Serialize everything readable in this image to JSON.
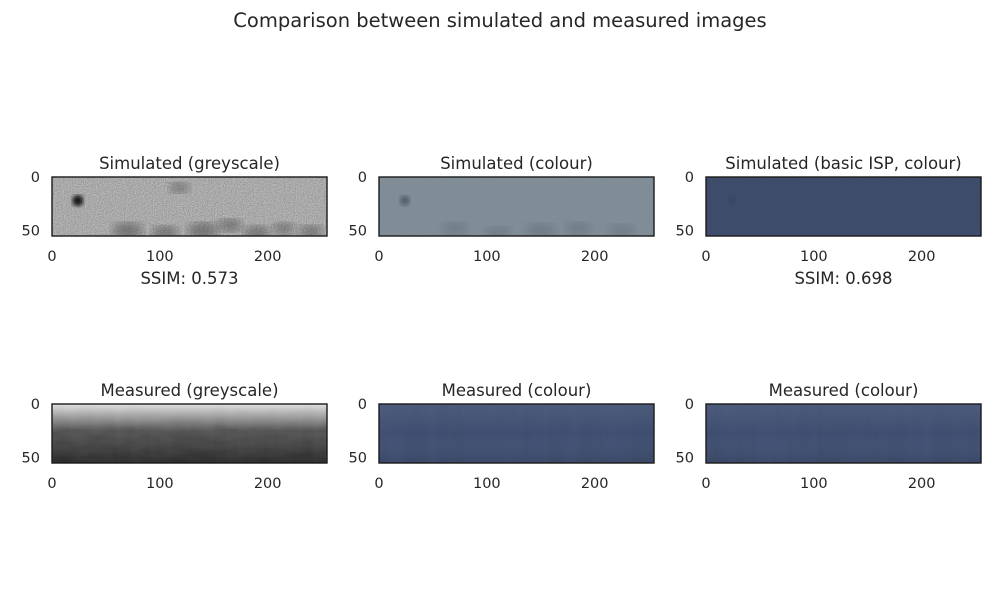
{
  "figure": {
    "title": "Comparison between simulated and measured images"
  },
  "chart_data": [
    {
      "type": "heatmap",
      "title": "Simulated (greyscale)",
      "image_kind": "greyscale",
      "base_color": "#8c8c8c",
      "xticks": [
        0,
        100,
        200
      ],
      "yticks": [
        0,
        50
      ],
      "xlim": [
        0,
        255
      ],
      "ylim": [
        55,
        0
      ],
      "annotation": "SSIM: 0.573"
    },
    {
      "type": "heatmap",
      "title": "Simulated (colour)",
      "image_kind": "colour",
      "base_color": "#7d8a94",
      "xticks": [
        0,
        100,
        200
      ],
      "yticks": [
        0,
        50
      ],
      "xlim": [
        0,
        255
      ],
      "ylim": [
        55,
        0
      ],
      "annotation": ""
    },
    {
      "type": "heatmap",
      "title": "Simulated (basic ISP, colour)",
      "image_kind": "colour",
      "base_color": "#3b4866",
      "xticks": [
        0,
        100,
        200
      ],
      "yticks": [
        0,
        50
      ],
      "xlim": [
        0,
        255
      ],
      "ylim": [
        55,
        0
      ],
      "annotation": "SSIM: 0.698"
    },
    {
      "type": "heatmap",
      "title": "Measured (greyscale)",
      "image_kind": "greyscale",
      "base_color": "#3a3a3a",
      "xticks": [
        0,
        100,
        200
      ],
      "yticks": [
        0,
        50
      ],
      "xlim": [
        0,
        255
      ],
      "ylim": [
        55,
        0
      ],
      "annotation": ""
    },
    {
      "type": "heatmap",
      "title": "Measured (colour)",
      "image_kind": "colour",
      "base_color": "#3c4a6b",
      "xticks": [
        0,
        100,
        200
      ],
      "yticks": [
        0,
        50
      ],
      "xlim": [
        0,
        255
      ],
      "ylim": [
        55,
        0
      ],
      "annotation": ""
    },
    {
      "type": "heatmap",
      "title": "Measured (colour)",
      "image_kind": "colour",
      "base_color": "#3c4a6b",
      "xticks": [
        0,
        100,
        200
      ],
      "yticks": [
        0,
        50
      ],
      "xlim": [
        0,
        255
      ],
      "ylim": [
        55,
        0
      ],
      "annotation": ""
    }
  ]
}
